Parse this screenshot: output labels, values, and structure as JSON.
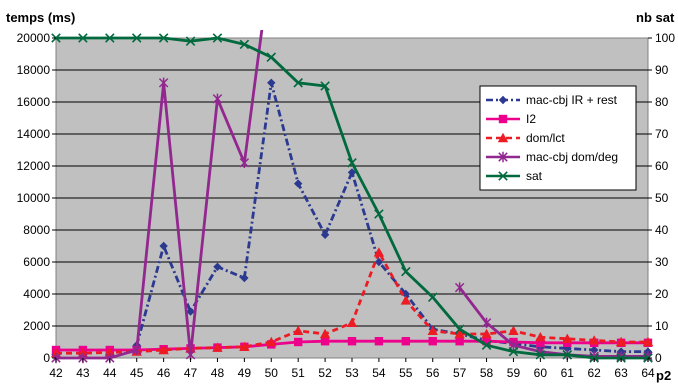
{
  "chart_data": {
    "type": "line",
    "y_left_label": "temps (ms)",
    "y_right_label": "nb sat",
    "xlabel": "p2",
    "ylim_left": [
      0,
      20000
    ],
    "ylim_right": [
      0,
      100
    ],
    "y_left_ticks": [
      0,
      2000,
      4000,
      6000,
      8000,
      10000,
      12000,
      14000,
      16000,
      18000,
      20000
    ],
    "y_right_ticks": [
      0,
      10,
      20,
      30,
      40,
      50,
      60,
      70,
      80,
      90,
      100
    ],
    "categories": [
      42,
      43,
      44,
      45,
      46,
      47,
      48,
      49,
      50,
      51,
      52,
      53,
      54,
      55,
      56,
      57,
      58,
      59,
      60,
      61,
      62,
      63,
      64
    ],
    "grid": true,
    "legend_position": "right",
    "series": [
      {
        "name": "mac-cbj IR + rest",
        "axis": "left",
        "color": "#2b3990",
        "dash": "dashdot",
        "marker": "diamond",
        "values": [
          null,
          null,
          null,
          800,
          7000,
          2900,
          5700,
          5000,
          17200,
          10900,
          7700,
          11600,
          6000,
          4000,
          1800,
          1500,
          1100,
          900,
          700,
          600,
          500,
          400,
          400
        ]
      },
      {
        "name": "I2",
        "axis": "left",
        "color": "#ec008c",
        "dash": "solid",
        "marker": "square",
        "values": [
          500,
          500,
          500,
          500,
          550,
          600,
          650,
          700,
          850,
          1000,
          1050,
          1050,
          1050,
          1050,
          1050,
          1050,
          1050,
          1000,
          950,
          950,
          950,
          950,
          950
        ]
      },
      {
        "name": "dom/lct",
        "axis": "left",
        "color": "#ed1c24",
        "dash": "dashed",
        "marker": "triangle",
        "values": [
          300,
          300,
          350,
          400,
          500,
          600,
          650,
          700,
          1000,
          1700,
          1500,
          2200,
          6600,
          3600,
          1700,
          1500,
          1500,
          1700,
          1300,
          1200,
          1100,
          1000,
          1000
        ]
      },
      {
        "name": "mac-cbj dom/deg",
        "axis": "left",
        "color": "#92278f",
        "dash": "solid",
        "marker": "star",
        "values": [
          0,
          0,
          0,
          500,
          17200,
          200,
          16200,
          12200,
          25000,
          null,
          null,
          null,
          null,
          null,
          null,
          4400,
          2200,
          800,
          400,
          200,
          100,
          100,
          100
        ]
      },
      {
        "name": "sat",
        "axis": "right",
        "color": "#00693e",
        "dash": "solid",
        "marker": "x",
        "values": [
          100,
          100,
          100,
          100,
          100,
          99,
          100,
          98,
          94,
          86,
          85,
          61,
          45,
          27,
          19,
          9,
          4,
          2,
          1,
          1,
          0,
          0,
          0
        ]
      }
    ]
  }
}
